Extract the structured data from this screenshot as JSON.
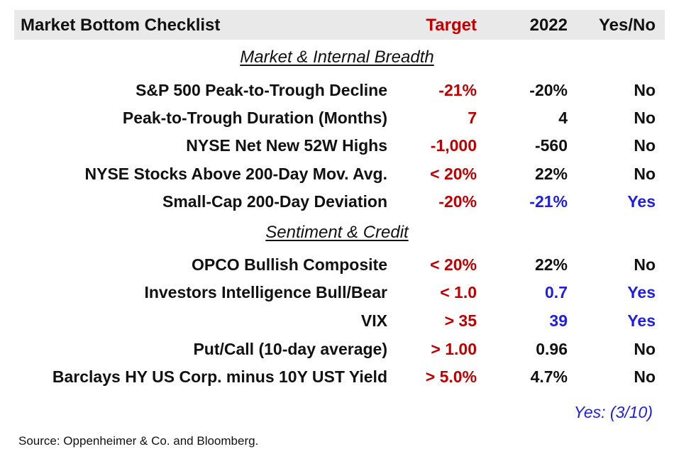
{
  "header": {
    "title": "Market Bottom Checklist",
    "target_label": "Target",
    "year_label": "2022",
    "yesno_label": "Yes/No"
  },
  "sections": [
    {
      "title": "Market & Internal Breadth",
      "rows": [
        {
          "label": "S&P 500 Peak-to-Trough Decline",
          "target": "-21%",
          "value": "-20%",
          "answer": "No"
        },
        {
          "label": "Peak-to-Trough Duration (Months)",
          "target": "7",
          "value": "4",
          "answer": "No"
        },
        {
          "label": "NYSE Net New 52W Highs",
          "target": "-1,000",
          "value": "-560",
          "answer": "No"
        },
        {
          "label": "NYSE Stocks Above 200-Day Mov. Avg.",
          "target": "< 20%",
          "value": "22%",
          "answer": "No"
        },
        {
          "label": "Small-Cap 200-Day Deviation",
          "target": "-20%",
          "value": "-21%",
          "answer": "Yes"
        }
      ]
    },
    {
      "title": "Sentiment & Credit",
      "rows": [
        {
          "label": "OPCO Bullish Composite",
          "target": "< 20%",
          "value": "22%",
          "answer": "No"
        },
        {
          "label": "Investors Intelligence Bull/Bear",
          "target": "< 1.0",
          "value": "0.7",
          "answer": "Yes"
        },
        {
          "label": "VIX",
          "target": "> 35",
          "value": "39",
          "answer": "Yes"
        },
        {
          "label": "Put/Call (10-day average)",
          "target": "> 1.00",
          "value": "0.96",
          "answer": "No"
        },
        {
          "label": "Barclays HY US Corp. minus 10Y UST Yield",
          "target": "> 5.0%",
          "value": "4.7%",
          "answer": "No"
        }
      ]
    }
  ],
  "summary": "Yes: (3/10)",
  "source": "Source: Oppenheimer & Co. and Bloomberg.",
  "colors": {
    "target_red": "#c00000",
    "yes_blue": "#1f1fe0",
    "text": "#111111",
    "header_bg": "#e9e9e9"
  }
}
